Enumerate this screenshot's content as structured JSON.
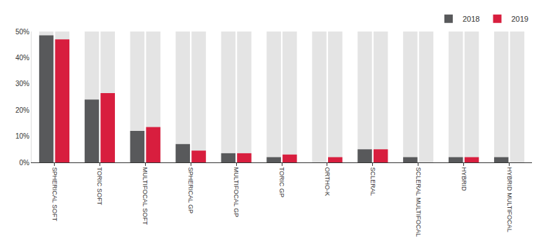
{
  "chart_data": {
    "type": "bar",
    "categories": [
      "SPHERICAL SOFT",
      "TORIC SOFT",
      "MULTIFOCAL SOFT",
      "SPHERICAL GP",
      "MULTIFOCAL GP",
      "TORIC GP",
      "ORTHO-K",
      "SCLERAL",
      "SCLERAL MULTIFOCAL",
      "HYBRID",
      "HYBRID MULTIFOCAL"
    ],
    "series": [
      {
        "name": "2018",
        "color": "#58595b",
        "values": [
          48.5,
          24,
          12,
          7,
          3.5,
          2,
          0,
          5,
          2,
          2,
          2
        ]
      },
      {
        "name": "2019",
        "color": "#d81e3e",
        "values": [
          47,
          26.5,
          13.5,
          4.5,
          3.5,
          3,
          2,
          5,
          0,
          2,
          0
        ]
      }
    ],
    "ylim": [
      0,
      50
    ],
    "yticks": [
      {
        "value": 0,
        "label": "0%"
      },
      {
        "value": 10,
        "label": "10%"
      },
      {
        "value": 20,
        "label": "20%"
      },
      {
        "value": 30,
        "label": "30%"
      },
      {
        "value": 40,
        "label": "40%"
      },
      {
        "value": 50,
        "label": "50%"
      }
    ],
    "grid": false,
    "legend": "top right"
  }
}
